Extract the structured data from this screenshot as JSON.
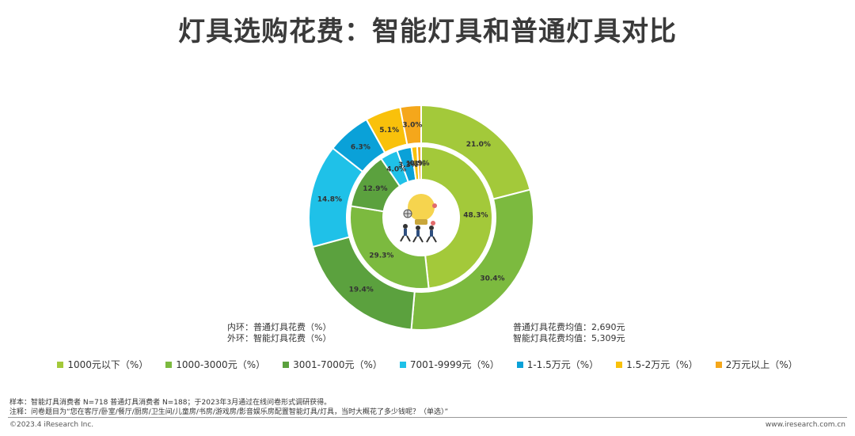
{
  "title": "灯具选购花费：智能灯具和普通灯具对比",
  "ring_labels": {
    "inner": "内环：普通灯具花费（%）",
    "outer": "外环：智能灯具花费（%）"
  },
  "averages": {
    "regular": "普通灯具花费均值：2,690元",
    "smart": "智能灯具花费均值：5,309元"
  },
  "notes": {
    "sample": "样本：智能灯具消费者 N=718  普通灯具消费者 N=188；于2023年3月通过在线问卷形式调研获得。",
    "note": "注释：问卷题目为“您在客厅/卧室/餐厅/厨房/卫生间/儿童房/书房/游戏房/影音娱乐房配置智能灯具/灯具，当时大概花了多少钱呢？（单选）”"
  },
  "footer": {
    "left": "©2023.4 iResearch Inc.",
    "right": "www.iresearch.com.cn"
  },
  "chart_data": {
    "type": "donut",
    "categories": [
      "1000元以下（%）",
      "1000-3000元（%）",
      "3001-7000元（%）",
      "7001-9999元（%）",
      "1-1.5万元（%）",
      "1.5-2万元（%）",
      "2万元以上（%）"
    ],
    "colors": [
      "#a3c93a",
      "#7cba3f",
      "#5ba13e",
      "#1fc1e8",
      "#0aa1d8",
      "#f9c10b",
      "#f5a71b"
    ],
    "series": [
      {
        "ring": "outer",
        "values": [
          21.0,
          30.4,
          19.4,
          14.8,
          6.3,
          5.1,
          3.0
        ]
      },
      {
        "ring": "inner",
        "values": [
          48.3,
          29.3,
          12.9,
          4.0,
          3.3,
          1.3,
          0.9
        ]
      }
    ]
  }
}
